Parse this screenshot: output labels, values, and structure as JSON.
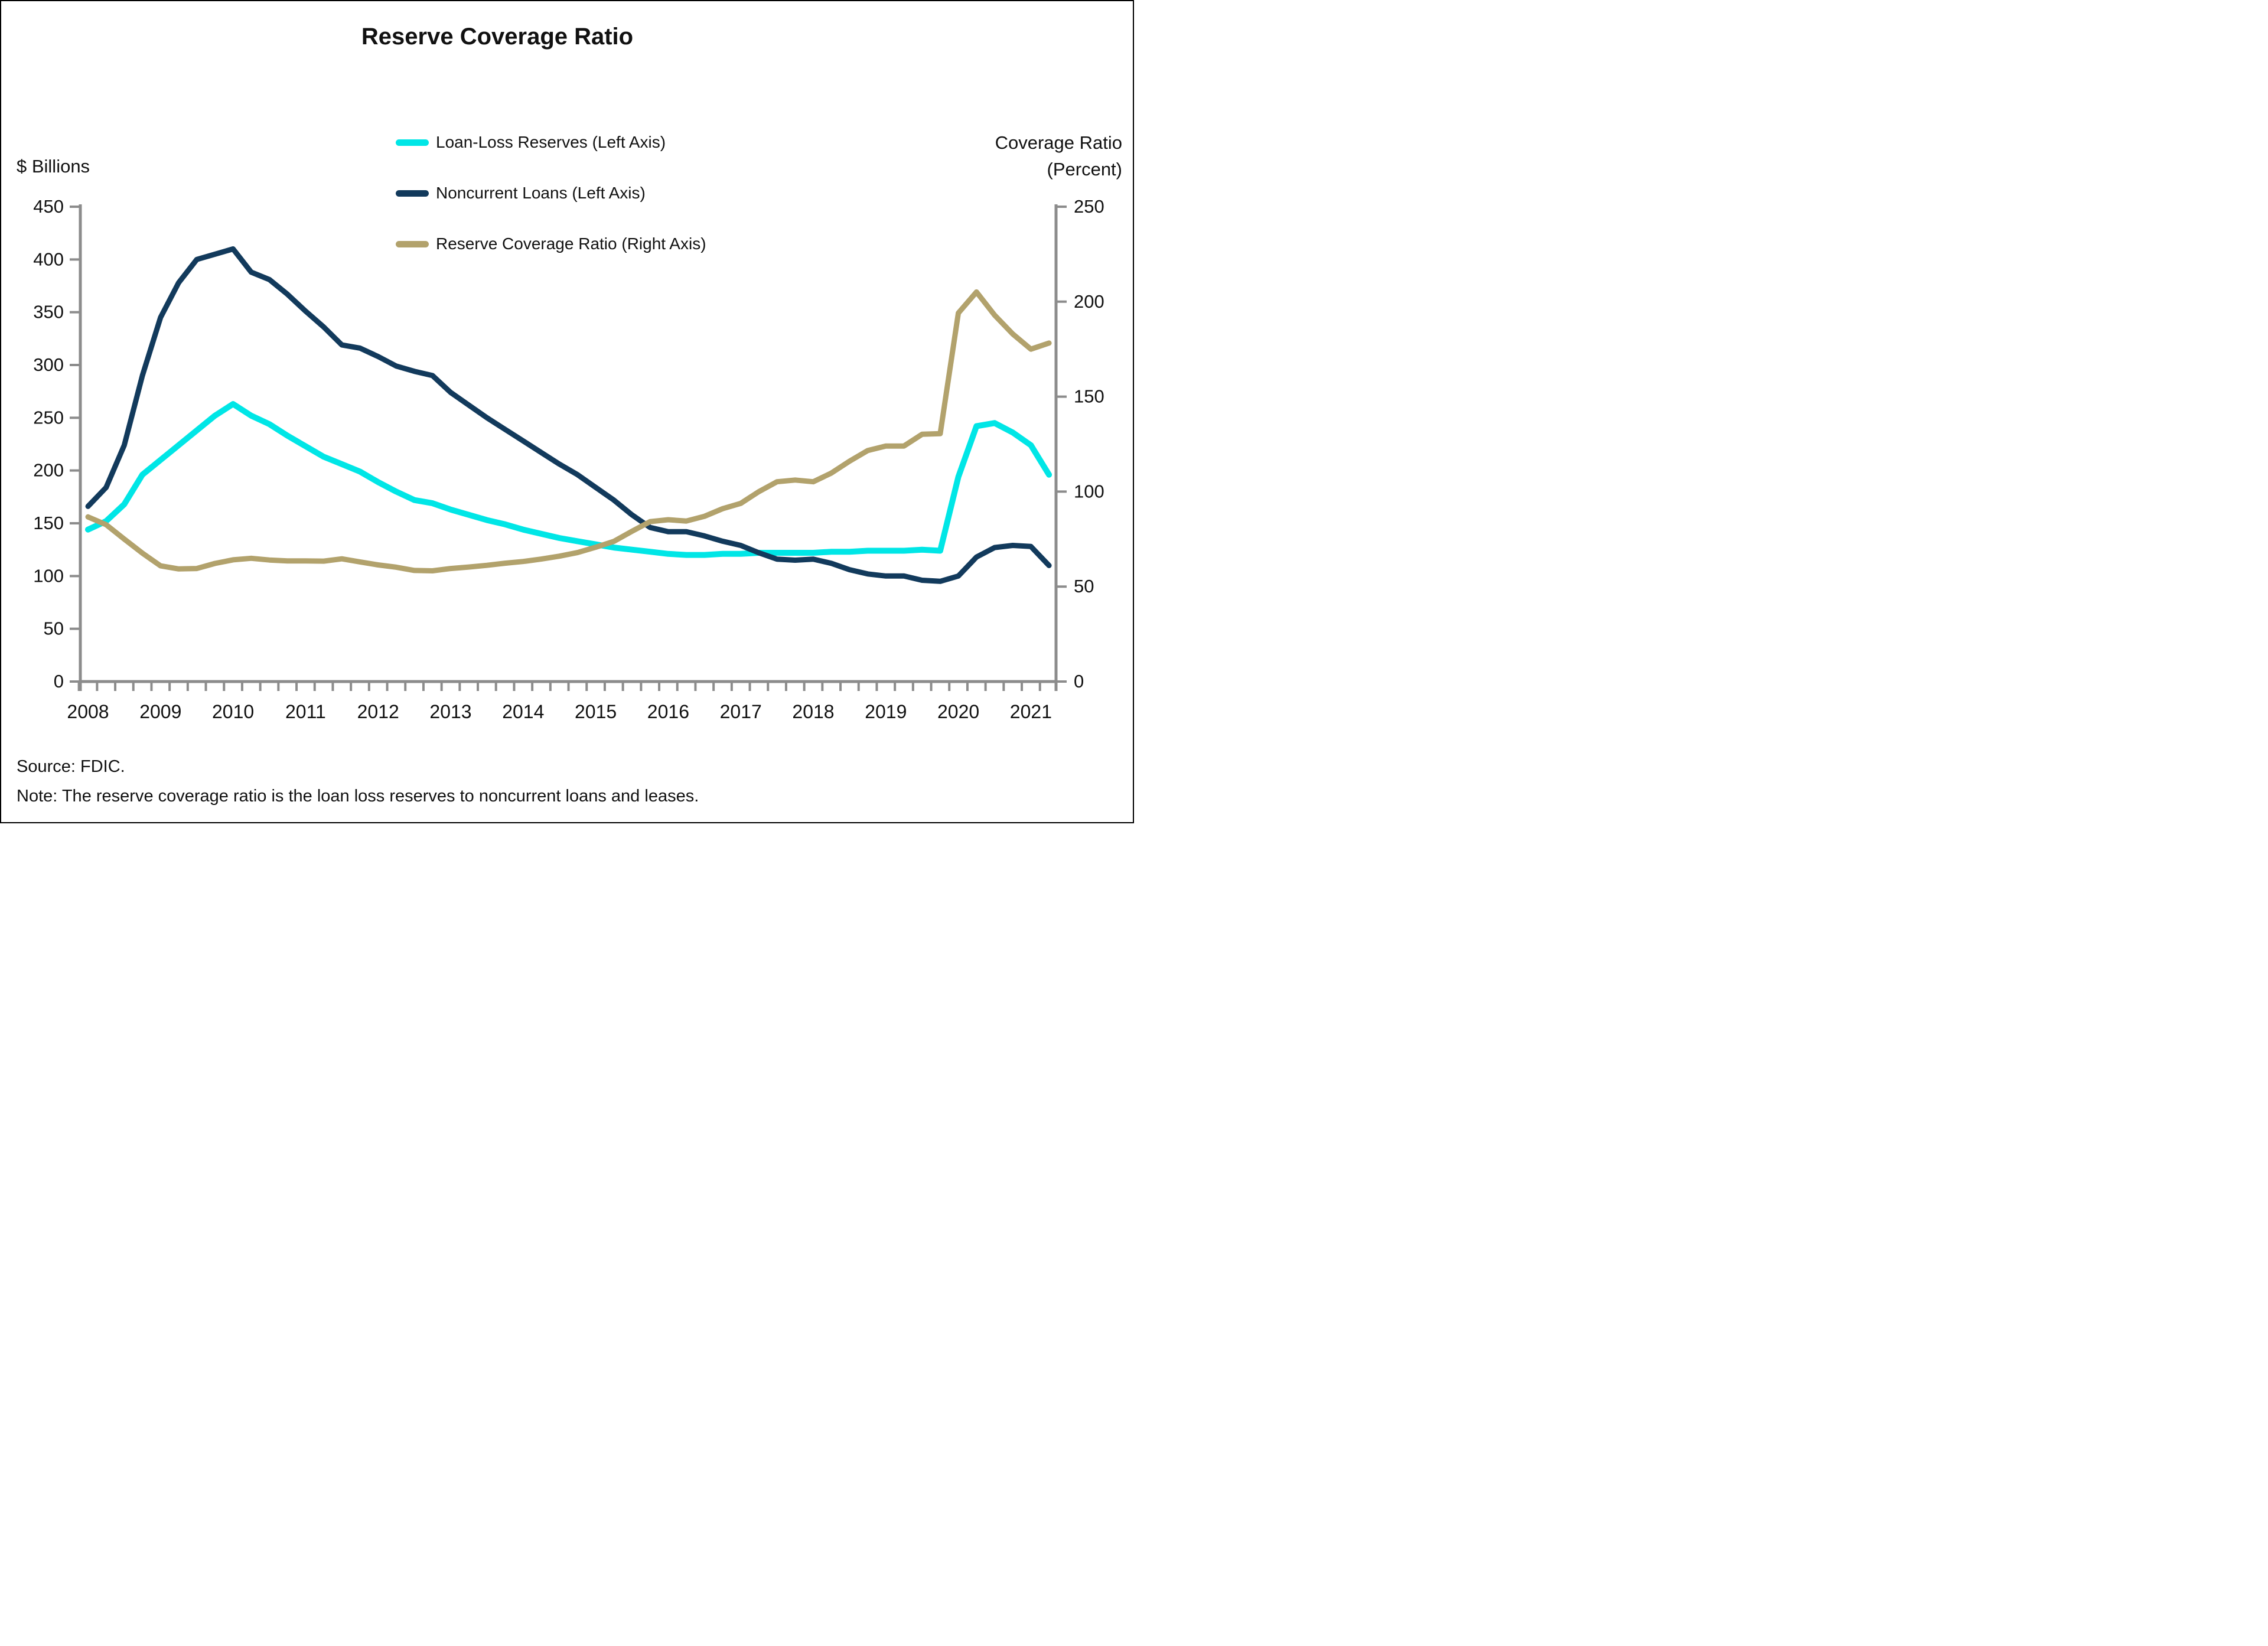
{
  "title": "Reserve Coverage Ratio",
  "left_axis_title": "$ Billions",
  "right_axis_title_line1": "Coverage Ratio",
  "right_axis_title_line2": "(Percent)",
  "source": "Source: FDIC.",
  "note": "Note: The reserve coverage ratio is the loan loss reserves to noncurrent loans and leases.",
  "colors": {
    "loan_loss_reserves": "#00e6e6",
    "noncurrent_loans": "#123a5c",
    "reserve_coverage_ratio": "#b2a26c",
    "axis": "#8c8c8c",
    "text": "#111111"
  },
  "legend": [
    {
      "label": "Loan-Loss Reserves (Left Axis)",
      "series": "loan_loss_reserves"
    },
    {
      "label": "Noncurrent Loans (Left Axis)",
      "series": "noncurrent_loans"
    },
    {
      "label": "Reserve Coverage Ratio (Right Axis)",
      "series": "reserve_coverage_ratio"
    }
  ],
  "chart_data": {
    "type": "line",
    "title": "Reserve Coverage Ratio",
    "x_unit": "quarter",
    "x_year_labels": [
      2008,
      2009,
      2010,
      2011,
      2012,
      2013,
      2014,
      2015,
      2016,
      2017,
      2018,
      2019,
      2020,
      2021
    ],
    "left_ylabel": "$ Billions",
    "right_ylabel": "Coverage Ratio (Percent)",
    "left_ylim": [
      0,
      450
    ],
    "left_ytick_step": 50,
    "right_ylim": [
      0,
      250
    ],
    "right_ytick_step": 50,
    "grid": false,
    "legend_position": "top-center",
    "quarters": [
      "2008 Q1",
      "2008 Q2",
      "2008 Q3",
      "2008 Q4",
      "2009 Q1",
      "2009 Q2",
      "2009 Q3",
      "2009 Q4",
      "2010 Q1",
      "2010 Q2",
      "2010 Q3",
      "2010 Q4",
      "2011 Q1",
      "2011 Q2",
      "2011 Q3",
      "2011 Q4",
      "2012 Q1",
      "2012 Q2",
      "2012 Q3",
      "2012 Q4",
      "2013 Q1",
      "2013 Q2",
      "2013 Q3",
      "2013 Q4",
      "2014 Q1",
      "2014 Q2",
      "2014 Q3",
      "2014 Q4",
      "2015 Q1",
      "2015 Q2",
      "2015 Q3",
      "2015 Q4",
      "2016 Q1",
      "2016 Q2",
      "2016 Q3",
      "2016 Q4",
      "2017 Q1",
      "2017 Q2",
      "2017 Q3",
      "2017 Q4",
      "2018 Q1",
      "2018 Q2",
      "2018 Q3",
      "2018 Q4",
      "2019 Q1",
      "2019 Q2",
      "2019 Q3",
      "2019 Q4",
      "2020 Q1",
      "2020 Q2",
      "2020 Q3",
      "2020 Q4",
      "2021 Q1",
      "2021 Q2"
    ],
    "series": [
      {
        "name": "Loan-Loss Reserves (Left Axis)",
        "key": "loan_loss_reserves",
        "axis": "left",
        "values": [
          144,
          152,
          168,
          196,
          210,
          224,
          238,
          252,
          263,
          252,
          244,
          233,
          223,
          213,
          206,
          199,
          189,
          180,
          172,
          169,
          163,
          158,
          153,
          149,
          144,
          140,
          136,
          133,
          130,
          127,
          125,
          123,
          121,
          120,
          120,
          121,
          121,
          122,
          122,
          122,
          122,
          123,
          123,
          124,
          124,
          124,
          125,
          124,
          194,
          242,
          245,
          236,
          224,
          196
        ]
      },
      {
        "name": "Noncurrent Loans (Left Axis)",
        "key": "noncurrent_loans",
        "axis": "left",
        "values": [
          166,
          184,
          224,
          290,
          345,
          378,
          400,
          405,
          410,
          388,
          381,
          367,
          351,
          336,
          319,
          316,
          308,
          299,
          294,
          290,
          274,
          262,
          250,
          239,
          228,
          217,
          206,
          196,
          184,
          172,
          158,
          146,
          142,
          142,
          138,
          133,
          129,
          122,
          116,
          115,
          116,
          112,
          106,
          102,
          100,
          100,
          96,
          95,
          100,
          118,
          127,
          129,
          128,
          110
        ]
      },
      {
        "name": "Reserve Coverage Ratio (Right Axis)",
        "key": "reserve_coverage_ratio",
        "axis": "right",
        "values": [
          86.7,
          82.6,
          75.0,
          67.6,
          60.9,
          59.3,
          59.5,
          62.2,
          64.1,
          64.9,
          64.0,
          63.5,
          63.5,
          63.4,
          64.6,
          63.0,
          61.4,
          60.2,
          58.5,
          58.3,
          59.5,
          60.3,
          61.2,
          62.3,
          63.2,
          64.5,
          66.0,
          67.9,
          70.7,
          73.8,
          79.1,
          84.2,
          85.2,
          84.5,
          87.0,
          91.0,
          93.8,
          100.0,
          105.2,
          106.1,
          105.2,
          109.8,
          116.0,
          121.6,
          124.0,
          124.0,
          130.2,
          130.5,
          194.0,
          205.1,
          192.9,
          183.0,
          175.0,
          178.2
        ]
      }
    ]
  }
}
